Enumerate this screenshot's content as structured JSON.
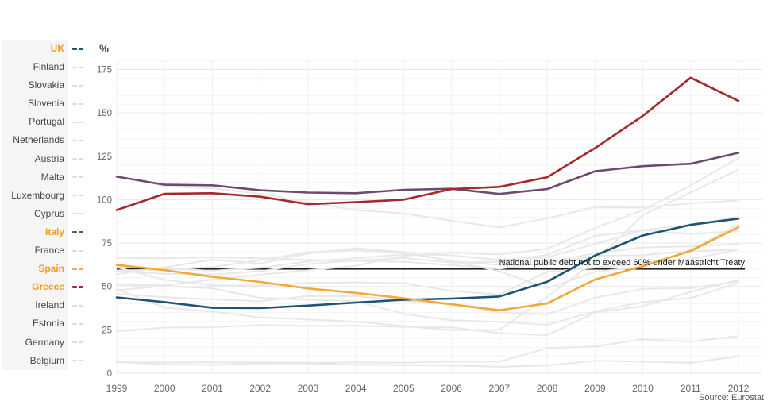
{
  "chart": {
    "y_axis_title": "%",
    "y_ticks": [
      0,
      25,
      50,
      75,
      100,
      125,
      150,
      175
    ],
    "annotation": {
      "text": "National public debt not to exceed 60% under Maastricht Treaty",
      "value": 60
    },
    "source": "Source: Eurostat"
  },
  "colors": {
    "highlight_label": "#f59a1f",
    "muted_series": "#e8e8e8",
    "muted_swatch": "#dcdcdc",
    "grid_minor": "#f4f4f4",
    "grid_major": "#e7e7e7",
    "grid_vertical": "#f0f0f0",
    "reference_line": "#000000"
  },
  "chart_data": {
    "type": "line",
    "title": "",
    "xlabel": "",
    "ylabel": "%",
    "ylim": [
      0,
      180
    ],
    "grid": true,
    "legend_position": "left",
    "x": [
      1999,
      2000,
      2001,
      2002,
      2003,
      2004,
      2005,
      2006,
      2007,
      2008,
      2009,
      2010,
      2011,
      2012
    ],
    "reference_line": {
      "value": 60,
      "label": "National public debt not to exceed 60% under Maastricht Treaty"
    },
    "series": [
      {
        "name": "UK",
        "highlighted": true,
        "color": "#1e5374",
        "values": [
          43.7,
          41.0,
          37.7,
          37.5,
          39.0,
          40.7,
          42.3,
          43.0,
          44.2,
          52.7,
          67.8,
          79.4,
          85.5,
          89.1
        ]
      },
      {
        "name": "Finland",
        "highlighted": false,
        "color": null,
        "values": [
          45.7,
          43.8,
          42.5,
          41.5,
          44.5,
          44.4,
          41.7,
          39.6,
          35.2,
          33.9,
          43.5,
          48.6,
          49.0,
          53.0
        ]
      },
      {
        "name": "Slovakia",
        "highlighted": false,
        "color": null,
        "values": [
          47.8,
          50.3,
          48.9,
          43.4,
          42.4,
          41.5,
          34.2,
          30.5,
          29.6,
          27.9,
          35.6,
          41.0,
          43.3,
          52.1
        ]
      },
      {
        "name": "Slovenia",
        "highlighted": false,
        "color": null,
        "values": [
          24.1,
          26.3,
          26.5,
          27.8,
          27.2,
          27.3,
          26.7,
          26.4,
          23.1,
          21.9,
          35.0,
          38.6,
          46.9,
          53.7
        ]
      },
      {
        "name": "Portugal",
        "highlighted": false,
        "color": null,
        "values": [
          51.0,
          50.7,
          53.8,
          56.8,
          59.4,
          61.9,
          67.7,
          69.4,
          68.4,
          71.7,
          83.7,
          94.0,
          108.2,
          124.1
        ]
      },
      {
        "name": "Netherlands",
        "highlighted": false,
        "color": null,
        "values": [
          61.1,
          53.8,
          50.7,
          50.5,
          52.0,
          52.4,
          51.8,
          47.4,
          45.3,
          58.5,
          60.8,
          63.4,
          65.7,
          71.3
        ]
      },
      {
        "name": "Austria",
        "highlighted": false,
        "color": null,
        "values": [
          66.5,
          66.2,
          66.8,
          66.2,
          65.3,
          64.7,
          64.2,
          62.3,
          60.2,
          63.8,
          69.2,
          72.5,
          73.1,
          74.4
        ]
      },
      {
        "name": "Malta",
        "highlighted": false,
        "color": null,
        "values": [
          57.1,
          60.9,
          65.5,
          63.2,
          69.1,
          72.0,
          69.8,
          64.5,
          62.4,
          62.7,
          67.8,
          68.0,
          70.3,
          71.3
        ]
      },
      {
        "name": "Luxembourg",
        "highlighted": false,
        "color": null,
        "values": [
          6.4,
          6.2,
          6.3,
          6.3,
          6.1,
          6.3,
          6.1,
          6.7,
          6.7,
          14.4,
          15.5,
          19.5,
          18.3,
          21.4
        ]
      },
      {
        "name": "Cyprus",
        "highlighted": false,
        "color": null,
        "values": [
          59.3,
          59.6,
          61.2,
          65.1,
          69.7,
          70.9,
          69.4,
          64.7,
          58.8,
          48.9,
          58.5,
          61.3,
          71.1,
          85.8
        ]
      },
      {
        "name": "Italy",
        "highlighted": true,
        "color": "#6d4b70",
        "values": [
          113.3,
          108.6,
          108.3,
          105.4,
          104.1,
          103.7,
          105.7,
          106.3,
          103.3,
          106.1,
          116.4,
          119.3,
          120.7,
          127.0
        ]
      },
      {
        "name": "France",
        "highlighted": false,
        "color": null,
        "values": [
          58.9,
          57.3,
          56.9,
          58.8,
          62.9,
          64.9,
          66.4,
          63.7,
          64.2,
          68.2,
          79.2,
          82.4,
          85.8,
          90.2
        ]
      },
      {
        "name": "Spain",
        "highlighted": true,
        "color": "#f3a83a",
        "values": [
          62.4,
          59.4,
          55.6,
          52.6,
          48.8,
          46.3,
          43.2,
          39.7,
          36.3,
          40.2,
          54.0,
          61.7,
          70.5,
          84.2
        ]
      },
      {
        "name": "Greece",
        "highlighted": true,
        "color": "#a5282b",
        "values": [
          94.0,
          103.4,
          103.7,
          101.7,
          97.4,
          98.6,
          100.0,
          106.1,
          107.4,
          112.9,
          129.7,
          148.3,
          170.3,
          156.9
        ]
      },
      {
        "name": "Ireland",
        "highlighted": false,
        "color": null,
        "values": [
          48.5,
          37.8,
          35.5,
          32.1,
          31.0,
          29.7,
          27.2,
          24.8,
          25.0,
          44.2,
          64.4,
          91.2,
          104.1,
          117.4
        ]
      },
      {
        "name": "Estonia",
        "highlighted": false,
        "color": null,
        "values": [
          6.5,
          5.1,
          4.8,
          5.7,
          5.6,
          5.0,
          4.6,
          4.4,
          3.7,
          4.5,
          7.2,
          6.7,
          6.1,
          9.8
        ]
      },
      {
        "name": "Germany",
        "highlighted": false,
        "color": null,
        "values": [
          61.3,
          60.2,
          59.1,
          60.7,
          64.4,
          66.2,
          68.5,
          68.0,
          65.2,
          66.8,
          74.5,
          82.4,
          80.4,
          81.9
        ]
      },
      {
        "name": "Belgium",
        "highlighted": false,
        "color": null,
        "values": [
          113.6,
          107.8,
          106.5,
          103.4,
          98.4,
          94.0,
          92.0,
          87.9,
          84.0,
          89.2,
          95.7,
          95.5,
          97.8,
          99.6
        ]
      }
    ]
  }
}
